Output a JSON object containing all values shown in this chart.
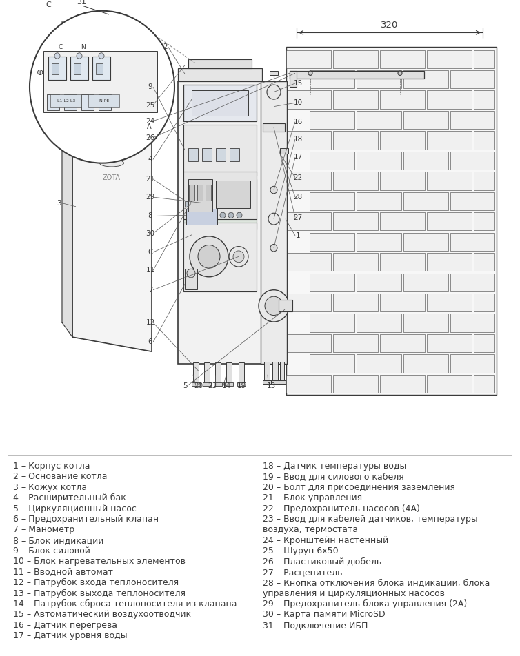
{
  "bg_color": "#ffffff",
  "line_color": "#3a3a3a",
  "text_color": "#3a3a3a",
  "legend_left": [
    "1 – Корпус котла",
    "2 – Основание котла",
    "3 – Кожух котла",
    "4 – Расширительный бак",
    "5 – Циркуляционный насос",
    "6 – Предохранительный клапан",
    "7 – Манометр",
    "8 – Блок индикации",
    "9 – Блок силовой",
    "10 – Блок нагревательных элементов",
    "11 – Вводной автомат",
    "12 – Патрубок входа теплоносителя",
    "13 – Патрубок выхода теплоносителя",
    "14 – Патрубок сброса теплоносителя из клапана",
    "15 – Автоматический воздухоотводчик",
    "16 – Датчик перегрева",
    "17 – Датчик уровня воды"
  ],
  "legend_right": [
    "18 – Датчик температуры воды",
    "19 – Ввод для силового кабеля",
    "20 – Болт для присоединения заземления",
    "21 – Блок управления",
    "22 – Предохранитель насосов (4A)",
    "23 – Ввод для кабелей датчиков, температуры",
    "воздуха, термостата",
    "24 – Кронштейн настенный",
    "25 – Шуруп 6x50",
    "26 – Пластиковый дюбель",
    "27 – Расцепитель",
    "28 – Кнопка отключения блока индикации, блока",
    "управления и циркуляционных насосов",
    "29 – Предохранитель блока управления (2A)",
    "30 – Карта памяти MicroSD",
    "31 – Подключение ИБП"
  ],
  "font_size_legend": 9.0,
  "font_size_labels": 7.5
}
